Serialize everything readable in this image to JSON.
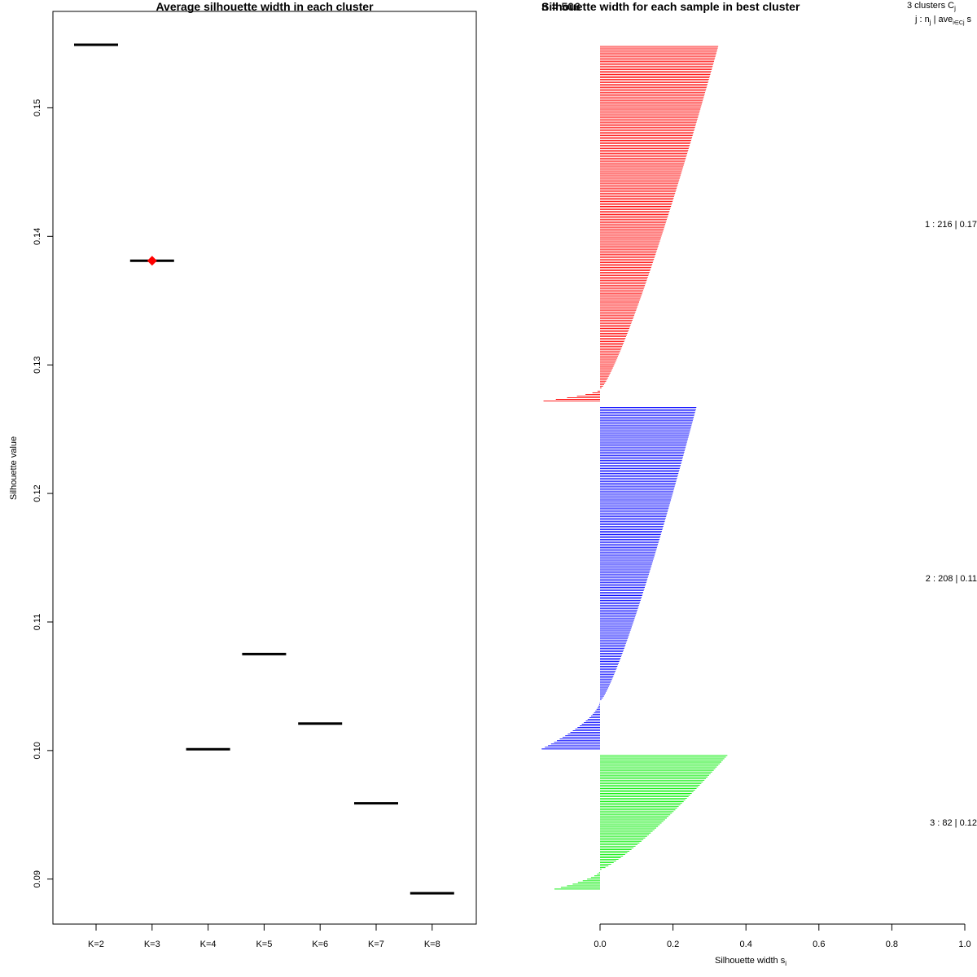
{
  "chart_data": [
    {
      "type": "scatter",
      "title": "Average silhouette width in each cluster",
      "xlabel": "",
      "ylabel": "Silhouette value",
      "ylim": [
        0.0865,
        0.1575
      ],
      "categories": [
        "K=2",
        "K=3",
        "K=4",
        "K=5",
        "K=6",
        "K=7",
        "K=8"
      ],
      "values": [
        0.1549,
        0.1381,
        0.1001,
        0.1075,
        0.1021,
        0.0959,
        0.0889
      ],
      "best_index": 1,
      "yticks": [
        {
          "value": 0.09,
          "label": "0.09"
        },
        {
          "value": 0.1,
          "label": "0.10"
        },
        {
          "value": 0.11,
          "label": "0.11"
        },
        {
          "value": 0.12,
          "label": "0.12"
        },
        {
          "value": 0.13,
          "label": "0.13"
        },
        {
          "value": 0.14,
          "label": "0.14"
        },
        {
          "value": 0.15,
          "label": "0.15"
        }
      ],
      "colors": {
        "line": "#000000",
        "best_marker": "#ff0000"
      }
    },
    {
      "type": "bar",
      "title": "Silhouette width for each sample in best cluster",
      "overlap_title": "n = 506",
      "xlabel": "Silhouette width s",
      "xlabel_sub": "i",
      "xlim": [
        0,
        1
      ],
      "xticks": [
        {
          "value": 0.0,
          "label": "0.0"
        },
        {
          "value": 0.2,
          "label": "0.2"
        },
        {
          "value": 0.4,
          "label": "0.4"
        },
        {
          "value": 0.6,
          "label": "0.6"
        },
        {
          "value": 0.8,
          "label": "0.8"
        },
        {
          "value": 1.0,
          "label": "1.0"
        }
      ],
      "legend_header": {
        "line1": "3  clusters  C",
        "line1_sub": "j",
        "line2": "j :  n",
        "line2_sub": "j",
        "line2_mid": " | ave",
        "line2_sub2": "i∈Cj",
        "line2_end": "  s"
      },
      "series": [
        {
          "name": "cluster 1",
          "label": "1 :  216  |  0.17",
          "n": 216,
          "color": "#ff0000",
          "max": 0.32,
          "min": -0.155,
          "neg_count": 8
        },
        {
          "name": "cluster 2",
          "label": "2 :  208  |  0.11",
          "n": 208,
          "color": "#0000ff",
          "max": 0.26,
          "min": -0.16,
          "neg_count": 30
        },
        {
          "name": "cluster 3",
          "label": "3 :  82  |  0.12",
          "n": 82,
          "color": "#00ee00",
          "max": 0.345,
          "min": -0.125,
          "neg_count": 12
        }
      ]
    }
  ]
}
